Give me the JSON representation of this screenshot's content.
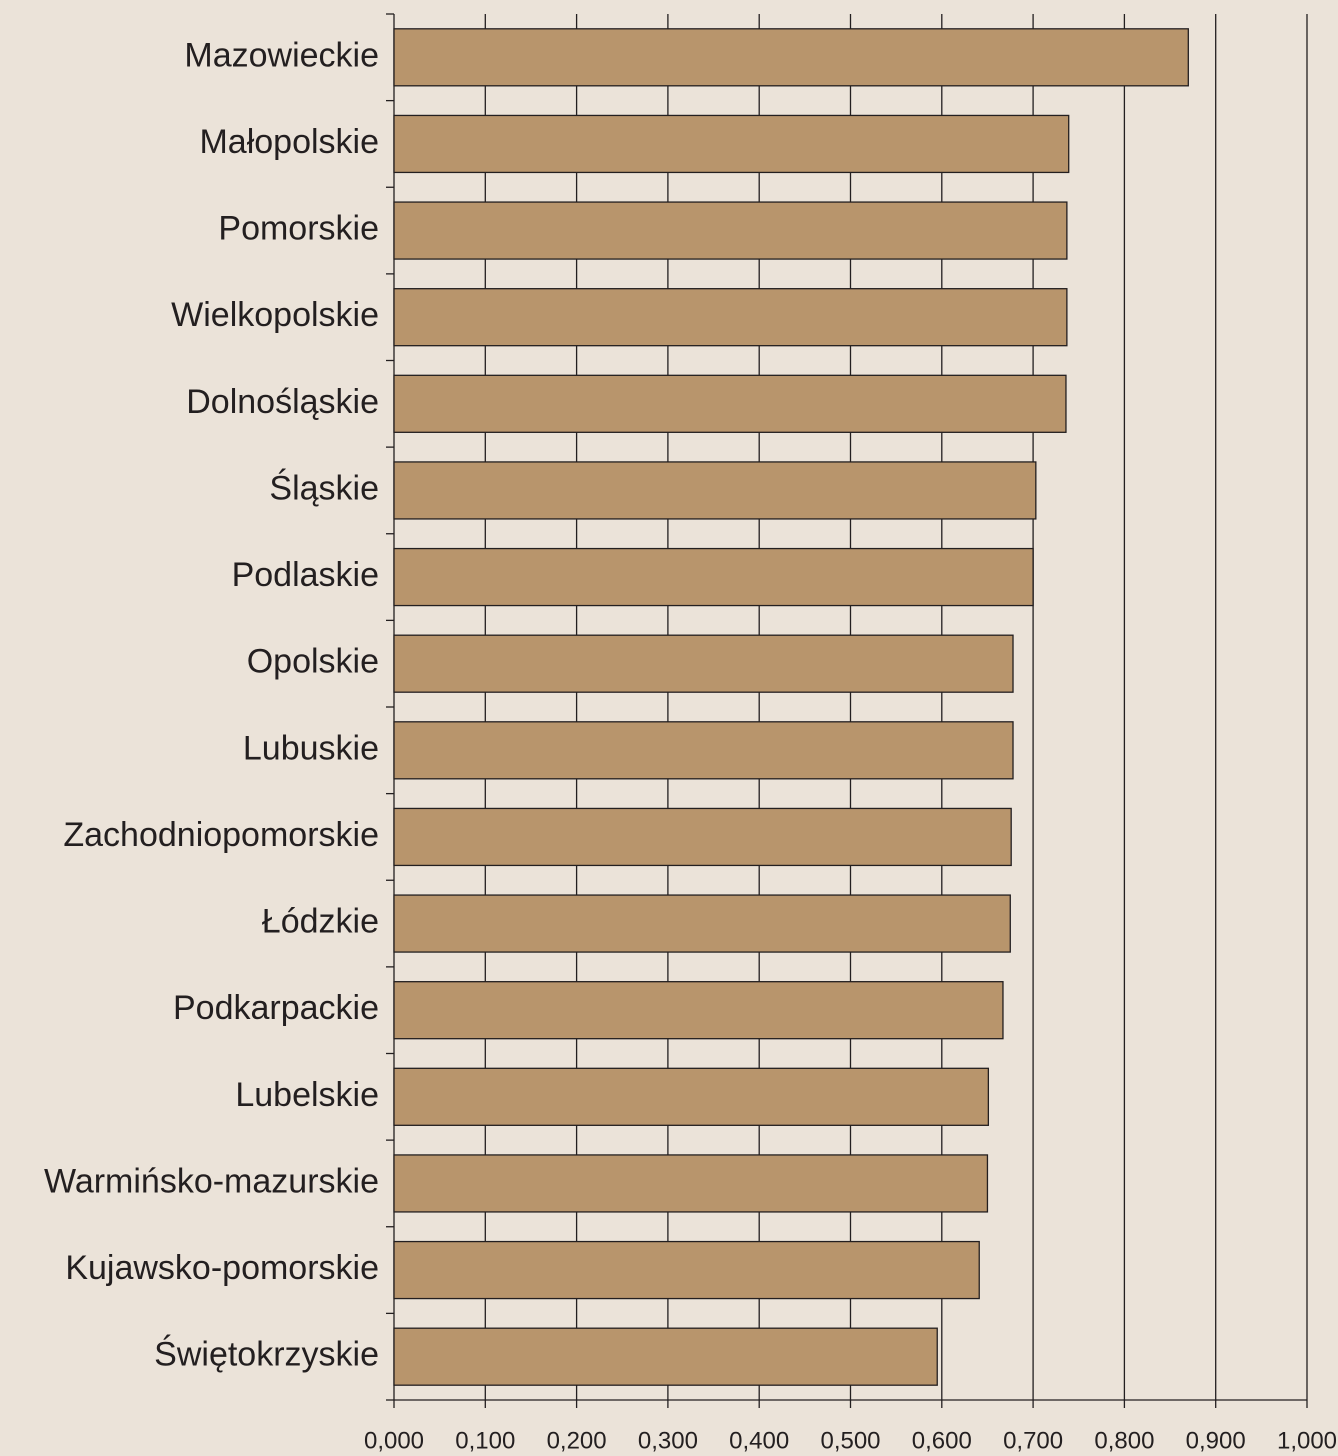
{
  "chart_data": {
    "type": "barh",
    "categories": [
      "Mazowieckie",
      "Małopolskie",
      "Pomorskie",
      "Wielkopolskie",
      "Dolnośląskie",
      "Śląskie",
      "Podlaskie",
      "Opolskie",
      "Lubuskie",
      "Zachodniopomorskie",
      "Łódzkie",
      "Podkarpackie",
      "Lubelskie",
      "Warmińsko-mazurskie",
      "Kujawsko-pomorskie",
      "Świętokrzyskie"
    ],
    "values": [
      0.87,
      0.739,
      0.737,
      0.737,
      0.736,
      0.703,
      0.7,
      0.678,
      0.678,
      0.676,
      0.675,
      0.667,
      0.651,
      0.65,
      0.641,
      0.595
    ],
    "color": "#b8956c",
    "xlim": [
      0,
      1
    ],
    "xticks": [
      {
        "value": 0,
        "label": "0,000"
      },
      {
        "value": 0.1,
        "label": "0,100"
      },
      {
        "value": 0.2,
        "label": "0,200"
      },
      {
        "value": 0.3,
        "label": "0,300"
      },
      {
        "value": 0.4,
        "label": "0,400"
      },
      {
        "value": 0.5,
        "label": "0,500"
      },
      {
        "value": 0.6,
        "label": "0,600"
      },
      {
        "value": 0.7,
        "label": "0,700"
      },
      {
        "value": 0.8,
        "label": "0,800"
      },
      {
        "value": 0.9,
        "label": "0,900"
      },
      {
        "value": 1,
        "label": "1,000"
      }
    ],
    "grid": true
  }
}
